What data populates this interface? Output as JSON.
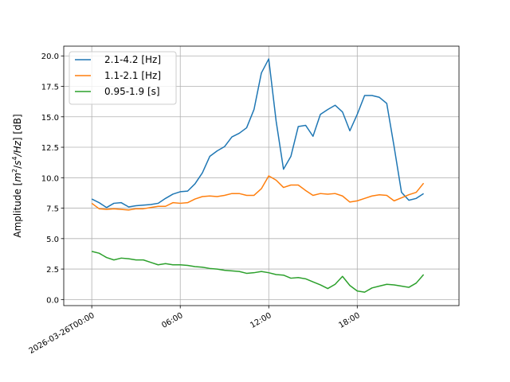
{
  "chart_data": {
    "type": "line",
    "ylabel_parts": {
      "pre": "Amplitude [",
      "m": "m",
      "m_exp": "2",
      "slash1": "/",
      "s": "s",
      "s_exp": "4",
      "slash2": "/",
      "hz": "Hz",
      "post": "] [dB]"
    },
    "xlim": [
      "2026-03-25T22:06",
      "2026-03-27T00:54"
    ],
    "ylim": [
      -0.5,
      20.8
    ],
    "grid": true,
    "legend_location": "upper left",
    "x_ticks": [
      {
        "hour": 0,
        "label": "2026-03-26T00:00"
      },
      {
        "hour": 6,
        "label": "06:00"
      },
      {
        "hour": 12,
        "label": "12:00"
      },
      {
        "hour": 18,
        "label": "18:00"
      }
    ],
    "y_ticks": [
      {
        "value": 0.0,
        "label": "0.0"
      },
      {
        "value": 2.5,
        "label": "2.5"
      },
      {
        "value": 5.0,
        "label": "5.0"
      },
      {
        "value": 7.5,
        "label": "7.5"
      },
      {
        "value": 10.0,
        "label": "10.0"
      },
      {
        "value": 12.5,
        "label": "12.5"
      },
      {
        "value": 15.0,
        "label": "15.0"
      },
      {
        "value": 17.5,
        "label": "17.5"
      },
      {
        "value": 20.0,
        "label": "20.0"
      }
    ],
    "x": [
      "2026-03-26T00:00",
      "2026-03-26T00:30",
      "2026-03-26T01:00",
      "2026-03-26T01:30",
      "2026-03-26T02:00",
      "2026-03-26T02:30",
      "2026-03-26T03:00",
      "2026-03-26T03:30",
      "2026-03-26T04:00",
      "2026-03-26T04:30",
      "2026-03-26T05:00",
      "2026-03-26T05:30",
      "2026-03-26T06:00",
      "2026-03-26T06:30",
      "2026-03-26T07:00",
      "2026-03-26T07:30",
      "2026-03-26T08:00",
      "2026-03-26T08:30",
      "2026-03-26T09:00",
      "2026-03-26T09:30",
      "2026-03-26T10:00",
      "2026-03-26T10:30",
      "2026-03-26T11:00",
      "2026-03-26T11:30",
      "2026-03-26T12:00",
      "2026-03-26T12:30",
      "2026-03-26T13:00",
      "2026-03-26T13:30",
      "2026-03-26T14:00",
      "2026-03-26T14:30",
      "2026-03-26T15:00",
      "2026-03-26T15:30",
      "2026-03-26T16:00",
      "2026-03-26T16:30",
      "2026-03-26T17:00",
      "2026-03-26T17:30",
      "2026-03-26T18:00",
      "2026-03-26T18:30",
      "2026-03-26T19:00",
      "2026-03-26T19:30",
      "2026-03-26T20:00",
      "2026-03-26T20:30",
      "2026-03-26T21:00",
      "2026-03-26T21:30",
      "2026-03-26T22:00",
      "2026-03-26T22:30"
    ],
    "series": [
      {
        "name": "2.1-4.2 [Hz]",
        "color": "#1f77b4",
        "values": [
          8.25,
          7.95,
          7.55,
          7.9,
          7.95,
          7.6,
          7.7,
          7.75,
          7.8,
          7.9,
          8.3,
          8.65,
          8.85,
          8.9,
          9.5,
          10.4,
          11.75,
          12.2,
          12.55,
          13.35,
          13.65,
          14.1,
          15.6,
          18.6,
          19.75,
          14.65,
          10.7,
          11.75,
          14.2,
          14.3,
          13.4,
          15.2,
          15.6,
          15.95,
          15.4,
          13.85,
          15.2,
          16.75,
          16.75,
          16.6,
          16.1,
          12.55,
          8.8,
          8.15,
          8.3,
          8.7
        ]
      },
      {
        "name": "1.1-2.1 [Hz]",
        "color": "#ff7f0e",
        "values": [
          7.9,
          7.45,
          7.4,
          7.45,
          7.4,
          7.35,
          7.45,
          7.45,
          7.55,
          7.65,
          7.65,
          7.95,
          7.9,
          7.95,
          8.25,
          8.45,
          8.5,
          8.45,
          8.55,
          8.7,
          8.7,
          8.55,
          8.55,
          9.1,
          10.15,
          9.8,
          9.2,
          9.4,
          9.4,
          8.95,
          8.55,
          8.7,
          8.65,
          8.7,
          8.5,
          8.0,
          8.1,
          8.3,
          8.5,
          8.6,
          8.55,
          8.1,
          8.35,
          8.6,
          8.8,
          9.55
        ]
      },
      {
        "name": "0.95-1.9 [s]",
        "color": "#2ca02c",
        "values": [
          3.95,
          3.8,
          3.45,
          3.25,
          3.4,
          3.35,
          3.25,
          3.25,
          3.05,
          2.85,
          2.95,
          2.85,
          2.85,
          2.8,
          2.7,
          2.65,
          2.55,
          2.5,
          2.4,
          2.35,
          2.3,
          2.15,
          2.2,
          2.3,
          2.2,
          2.05,
          2.0,
          1.75,
          1.8,
          1.7,
          1.45,
          1.2,
          0.9,
          1.25,
          1.9,
          1.15,
          0.7,
          0.6,
          0.95,
          1.1,
          1.25,
          1.2,
          1.1,
          1.0,
          1.35,
          2.05
        ]
      }
    ]
  }
}
